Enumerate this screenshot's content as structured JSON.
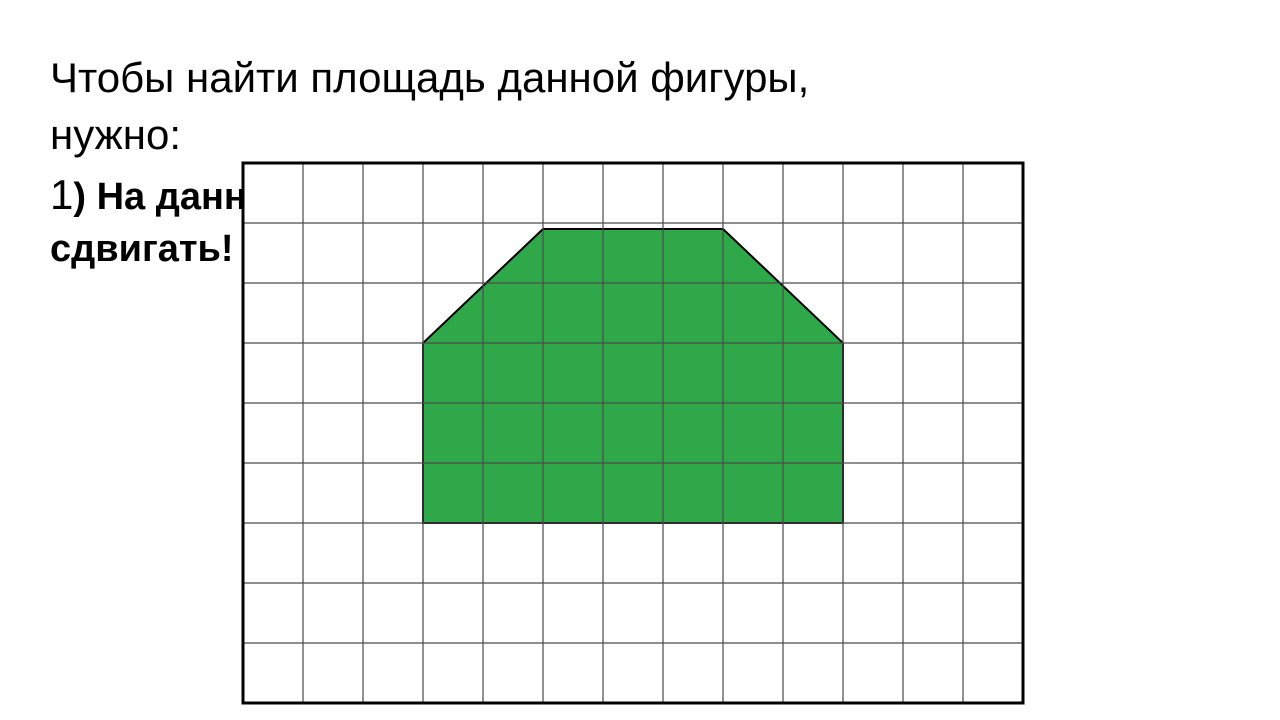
{
  "text": {
    "title_line1": "Чтобы найти площадь данной фигуры,",
    "title_line2": "нужно:",
    "step_number": "1",
    "step_text_line1": ") На данную фигуру наложить палетку. Не",
    "step_text_line2": "сдвигать!"
  },
  "grid": {
    "cols": 13,
    "rows": 9,
    "cell_size": 60,
    "border_width": 3,
    "inner_line_width": 1.2,
    "border_color": "#000000",
    "inner_line_color": "#4a4a4a",
    "background_color": "#ffffff"
  },
  "shape": {
    "type": "polygon",
    "fill_color": "#2fa84a",
    "stroke_color": "#000000",
    "stroke_width": 2,
    "points_cells": [
      [
        3,
        6
      ],
      [
        3,
        3
      ],
      [
        5,
        1.1
      ],
      [
        8,
        1.1
      ],
      [
        10,
        3
      ],
      [
        10,
        6
      ]
    ]
  },
  "typography": {
    "title_fontsize": 42,
    "step_number_fontsize": 42,
    "step_text_fontsize": 38,
    "title_weight": "400",
    "step_text_weight": "700",
    "color": "#000000"
  }
}
